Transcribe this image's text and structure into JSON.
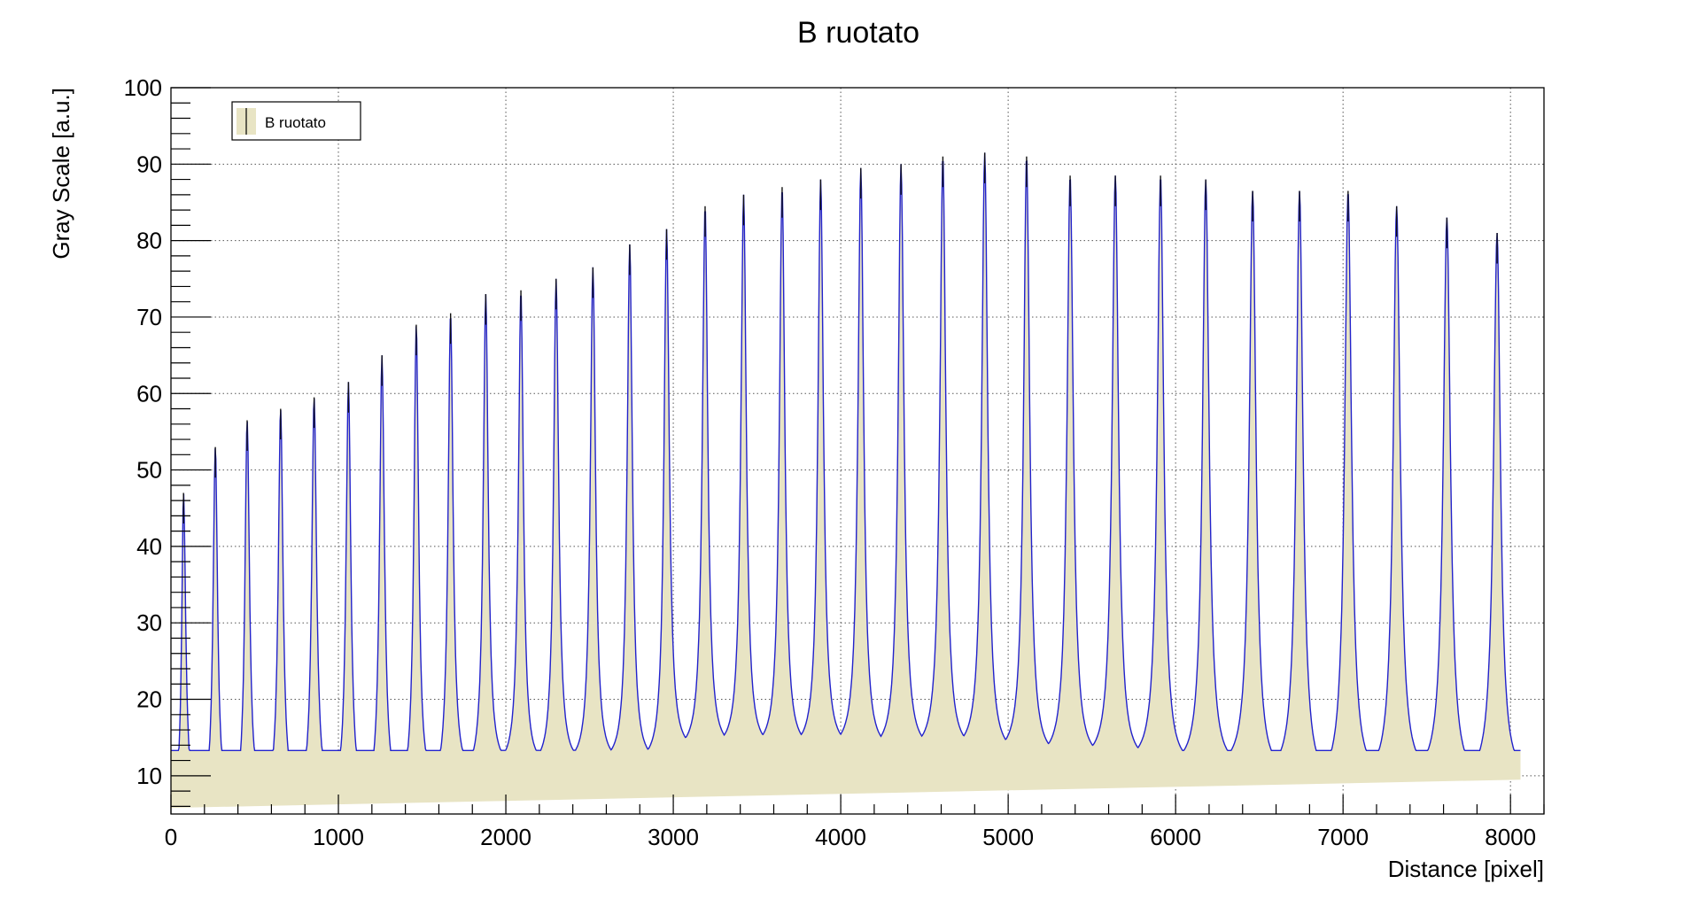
{
  "chart_data": {
    "type": "area",
    "title": "B ruotato",
    "xlabel": "Distance [pixel]",
    "ylabel": "Gray Scale [a.u.]",
    "xlim": [
      0,
      8200
    ],
    "ylim": [
      5,
      100
    ],
    "grid": true,
    "x_ticks": [
      0,
      1000,
      2000,
      3000,
      4000,
      5000,
      6000,
      7000,
      8000
    ],
    "y_ticks": [
      10,
      20,
      30,
      40,
      50,
      60,
      70,
      80,
      90,
      100
    ],
    "x_tick_labels": [
      "0",
      "1000",
      "2000",
      "3000",
      "4000",
      "5000",
      "6000",
      "7000",
      "8000"
    ],
    "y_tick_labels": [
      "10",
      "20",
      "30",
      "40",
      "50",
      "60",
      "70",
      "80",
      "90",
      "100"
    ],
    "legend": {
      "position": "top-left",
      "entries": [
        "B ruotato"
      ]
    },
    "fill_color": "#e8e4c4",
    "line_color": "#2222cc",
    "x_range": [
      0,
      8060
    ],
    "start_value": 6.2,
    "end_value": 9.6,
    "baseline_start": 5.8,
    "baseline_end": 9.5,
    "peaks": [
      {
        "x": 75,
        "y": 47
      },
      {
        "x": 265,
        "y": 53
      },
      {
        "x": 455,
        "y": 56.5
      },
      {
        "x": 655,
        "y": 58
      },
      {
        "x": 855,
        "y": 59.5
      },
      {
        "x": 1060,
        "y": 61.5
      },
      {
        "x": 1260,
        "y": 65
      },
      {
        "x": 1465,
        "y": 69
      },
      {
        "x": 1670,
        "y": 70.5
      },
      {
        "x": 1880,
        "y": 73
      },
      {
        "x": 2090,
        "y": 73.5
      },
      {
        "x": 2300,
        "y": 75
      },
      {
        "x": 2520,
        "y": 76.5
      },
      {
        "x": 2740,
        "y": 79.5
      },
      {
        "x": 2960,
        "y": 81.5
      },
      {
        "x": 3190,
        "y": 84.5
      },
      {
        "x": 3420,
        "y": 86
      },
      {
        "x": 3650,
        "y": 87
      },
      {
        "x": 3880,
        "y": 88
      },
      {
        "x": 4120,
        "y": 89.5
      },
      {
        "x": 4360,
        "y": 90
      },
      {
        "x": 4610,
        "y": 91
      },
      {
        "x": 4860,
        "y": 91.5
      },
      {
        "x": 5110,
        "y": 91
      },
      {
        "x": 5370,
        "y": 88.5
      },
      {
        "x": 5640,
        "y": 88.5
      },
      {
        "x": 5910,
        "y": 88.5
      },
      {
        "x": 6180,
        "y": 88
      },
      {
        "x": 6460,
        "y": 86.5
      },
      {
        "x": 6740,
        "y": 86.5
      },
      {
        "x": 7030,
        "y": 86.5
      },
      {
        "x": 7320,
        "y": 84.5
      },
      {
        "x": 7620,
        "y": 83
      },
      {
        "x": 7920,
        "y": 81
      }
    ],
    "valleys": [
      {
        "x": 170,
        "y": 5.5
      },
      {
        "x": 360,
        "y": 5.8
      },
      {
        "x": 555,
        "y": 6.5
      },
      {
        "x": 755,
        "y": 6.8
      },
      {
        "x": 960,
        "y": 6.8
      },
      {
        "x": 1160,
        "y": 6.8
      },
      {
        "x": 1365,
        "y": 7.2
      },
      {
        "x": 1565,
        "y": 8.2
      },
      {
        "x": 1775,
        "y": 9.8
      },
      {
        "x": 1985,
        "y": 11
      },
      {
        "x": 2195,
        "y": 11
      },
      {
        "x": 2410,
        "y": 11.3
      },
      {
        "x": 2630,
        "y": 11.5
      },
      {
        "x": 2850,
        "y": 11.5
      },
      {
        "x": 3075,
        "y": 13
      },
      {
        "x": 3305,
        "y": 13.3
      },
      {
        "x": 3535,
        "y": 13.3
      },
      {
        "x": 3765,
        "y": 13.3
      },
      {
        "x": 4000,
        "y": 13.3
      },
      {
        "x": 4240,
        "y": 13
      },
      {
        "x": 4485,
        "y": 13
      },
      {
        "x": 4735,
        "y": 13
      },
      {
        "x": 4985,
        "y": 12.5
      },
      {
        "x": 5240,
        "y": 12
      },
      {
        "x": 5505,
        "y": 11.8
      },
      {
        "x": 5775,
        "y": 11.5
      },
      {
        "x": 6045,
        "y": 11
      },
      {
        "x": 6320,
        "y": 10.8
      },
      {
        "x": 6600,
        "y": 10
      },
      {
        "x": 6885,
        "y": 8.8
      },
      {
        "x": 7175,
        "y": 9.5
      },
      {
        "x": 7470,
        "y": 9.8
      },
      {
        "x": 7770,
        "y": 9.2
      }
    ]
  }
}
